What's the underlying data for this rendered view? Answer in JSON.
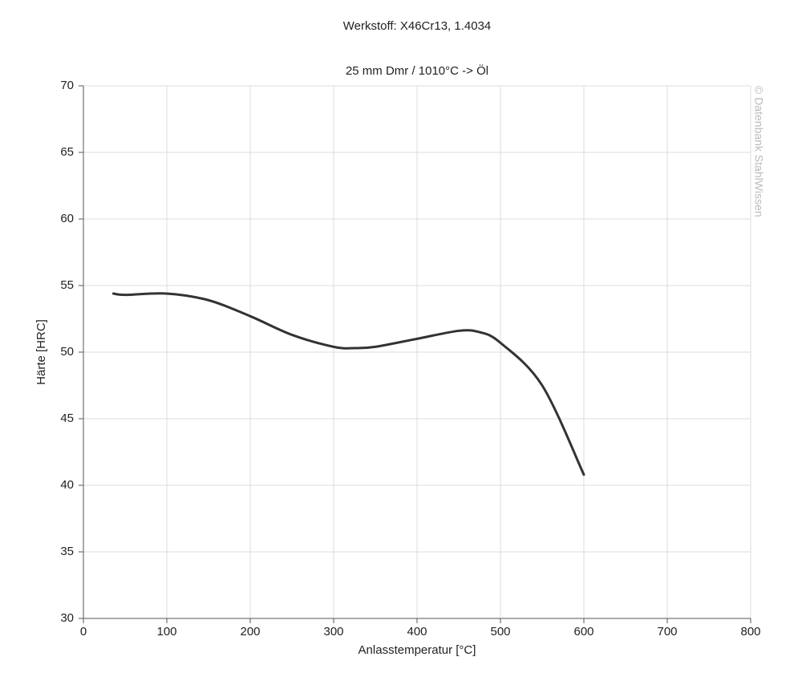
{
  "chart_data": {
    "type": "line",
    "title": "Werkstoff: X46Cr13, 1.4034",
    "subtitle": "25 mm Dmr / 1010°C -> Öl",
    "x_label": "Anlasstemperatur [°C]",
    "y_label": "Härte [HRC]",
    "watermark": "© Datenbank StahlWissen",
    "x": [
      36,
      50,
      100,
      150,
      200,
      250,
      300,
      325,
      350,
      400,
      450,
      475,
      500,
      550,
      600
    ],
    "series": [
      {
        "color": "#333333",
        "values": [
          54.4,
          54.3,
          54.4,
          53.9,
          52.7,
          51.3,
          50.4,
          50.3,
          50.4,
          51.0,
          51.6,
          51.5,
          50.7,
          47.5,
          40.8
        ]
      }
    ],
    "xlim": [
      0,
      800
    ],
    "xticks": [
      0,
      100,
      200,
      300,
      400,
      500,
      600,
      700,
      800
    ],
    "ylim": [
      30,
      70
    ],
    "yticks": [
      30,
      35,
      40,
      45,
      50,
      55,
      60,
      65,
      70
    ],
    "grid": true
  }
}
